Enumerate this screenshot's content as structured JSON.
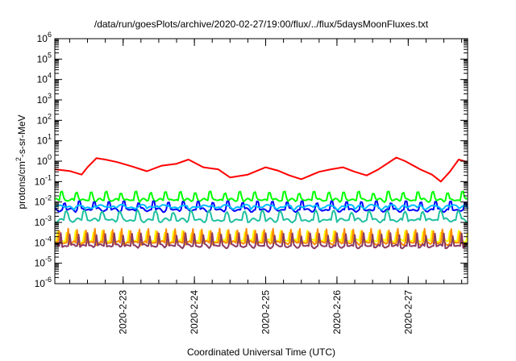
{
  "chart_data": {
    "type": "line",
    "title": "/data/run/goesPlots/archive/2020-02-27/19:00/flux/../flux/5daysMoonFluxes.txt",
    "xlabel": "Coordinated Universal Time (UTC)",
    "ylabel": {
      "prefix": "protons/cm",
      "sup": "2",
      "suffix": "-s-sr-MeV"
    },
    "y_scale": "log",
    "ylim": [
      1e-06,
      1000000.0
    ],
    "y_ticks": [
      {
        "base": "10",
        "exp": "-6",
        "value": 1e-06
      },
      {
        "base": "10",
        "exp": "-5",
        "value": 1e-05
      },
      {
        "base": "10",
        "exp": "-4",
        "value": 0.0001
      },
      {
        "base": "10",
        "exp": "-3",
        "value": 0.001
      },
      {
        "base": "10",
        "exp": "-2",
        "value": 0.01
      },
      {
        "base": "10",
        "exp": "-1",
        "value": 0.1
      },
      {
        "base": "10",
        "exp": "0",
        "value": 1
      },
      {
        "base": "10",
        "exp": "1",
        "value": 10
      },
      {
        "base": "10",
        "exp": "2",
        "value": 100
      },
      {
        "base": "10",
        "exp": "3",
        "value": 1000
      },
      {
        "base": "10",
        "exp": "4",
        "value": 10000
      },
      {
        "base": "10",
        "exp": "5",
        "value": 100000
      },
      {
        "base": "10",
        "exp": "6",
        "value": 1000000
      }
    ],
    "x_start": "2020-02-22 01:00",
    "x_end": "2020-02-27 20:00",
    "x_ticks": [
      {
        "label": "2020-2-23",
        "value": "2020-02-23 00:00"
      },
      {
        "label": "2020-2-24",
        "value": "2020-02-24 00:00"
      },
      {
        "label": "2020-2-25",
        "value": "2020-02-25 00:00"
      },
      {
        "label": "2020-2-26",
        "value": "2020-02-26 00:00"
      },
      {
        "label": "2020-2-27",
        "value": "2020-02-27 00:00"
      }
    ],
    "grid": false,
    "series": [
      {
        "color": "#ff0000",
        "points": [
          [
            "2020-02-22 01:00",
            0.4
          ],
          [
            "2020-02-22 06:00",
            0.33
          ],
          [
            "2020-02-22 10:00",
            0.22
          ],
          [
            "2020-02-22 12:00",
            0.5
          ],
          [
            "2020-02-22 15:00",
            1.4
          ],
          [
            "2020-02-22 18:00",
            1.2
          ],
          [
            "2020-02-22 22:00",
            0.9
          ],
          [
            "2020-02-23 03:00",
            0.55
          ],
          [
            "2020-02-23 08:00",
            0.32
          ],
          [
            "2020-02-23 13:00",
            0.6
          ],
          [
            "2020-02-23 18:00",
            0.75
          ],
          [
            "2020-02-23 22:00",
            1.2
          ],
          [
            "2020-02-24 03:00",
            0.5
          ],
          [
            "2020-02-24 08:00",
            0.4
          ],
          [
            "2020-02-24 12:00",
            0.16
          ],
          [
            "2020-02-24 18:00",
            0.22
          ],
          [
            "2020-02-25 00:00",
            0.5
          ],
          [
            "2020-02-25 04:00",
            0.35
          ],
          [
            "2020-02-25 08:00",
            0.2
          ],
          [
            "2020-02-25 12:00",
            0.13
          ],
          [
            "2020-02-25 18:00",
            0.3
          ],
          [
            "2020-02-25 22:00",
            0.4
          ],
          [
            "2020-02-26 02:00",
            0.5
          ],
          [
            "2020-02-26 06:00",
            0.3
          ],
          [
            "2020-02-26 10:00",
            0.2
          ],
          [
            "2020-02-26 14:00",
            0.4
          ],
          [
            "2020-02-26 20:00",
            1.5
          ],
          [
            "2020-02-26 23:00",
            1.0
          ],
          [
            "2020-02-27 04:00",
            0.4
          ],
          [
            "2020-02-27 08:00",
            0.22
          ],
          [
            "2020-02-27 11:00",
            0.1
          ],
          [
            "2020-02-27 14:00",
            0.3
          ],
          [
            "2020-02-27 17:00",
            1.2
          ],
          [
            "2020-02-27 20:00",
            0.9
          ]
        ]
      },
      {
        "color": "#00ff00",
        "baseline": 0.012,
        "spike": 0.035,
        "period_hours": 5,
        "phase_hours": 1.5,
        "width_hours": 1.6,
        "start": "2020-02-22 01:00",
        "end": "2020-02-27 20:00"
      },
      {
        "color": "#0000ff",
        "baseline": 0.0042,
        "spike": 0.012,
        "period_hours": 5,
        "phase_hours": 2.5,
        "width_hours": 1.5,
        "start": "2020-02-22 01:00",
        "end": "2020-02-27 20:00"
      },
      {
        "color": "#00bfff",
        "baseline": 0.0055,
        "spike": 0.0075,
        "period_hours": 7,
        "phase_hours": 0,
        "width_hours": 3,
        "start": "2020-02-22 01:00",
        "end": "2020-02-27 20:00"
      },
      {
        "color": "#20c0a0",
        "baseline": 0.0013,
        "spike": 0.004,
        "period_hours": 6,
        "phase_hours": 3,
        "width_hours": 1.8,
        "start": "2020-02-22 01:00",
        "end": "2020-02-27 20:00"
      },
      {
        "color": "#ffff00",
        "baseline": 0.00012,
        "spike": 0.0004,
        "period_hours": 3,
        "phase_hours": 0.5,
        "width_hours": 1,
        "start": "2020-02-22 01:00",
        "end": "2020-02-27 20:00"
      },
      {
        "color": "#ff8c00",
        "baseline": 0.0001,
        "spike": 0.0005,
        "period_hours": 3,
        "phase_hours": 1,
        "width_hours": 0.9,
        "start": "2020-02-22 01:00",
        "end": "2020-02-27 20:00"
      },
      {
        "color": "#8b3a62",
        "baseline": 7e-05,
        "spike": 0.0003,
        "period_hours": 3,
        "phase_hours": 1.5,
        "width_hours": 1,
        "start": "2020-02-22 01:00",
        "end": "2020-02-27 20:00"
      }
    ]
  }
}
